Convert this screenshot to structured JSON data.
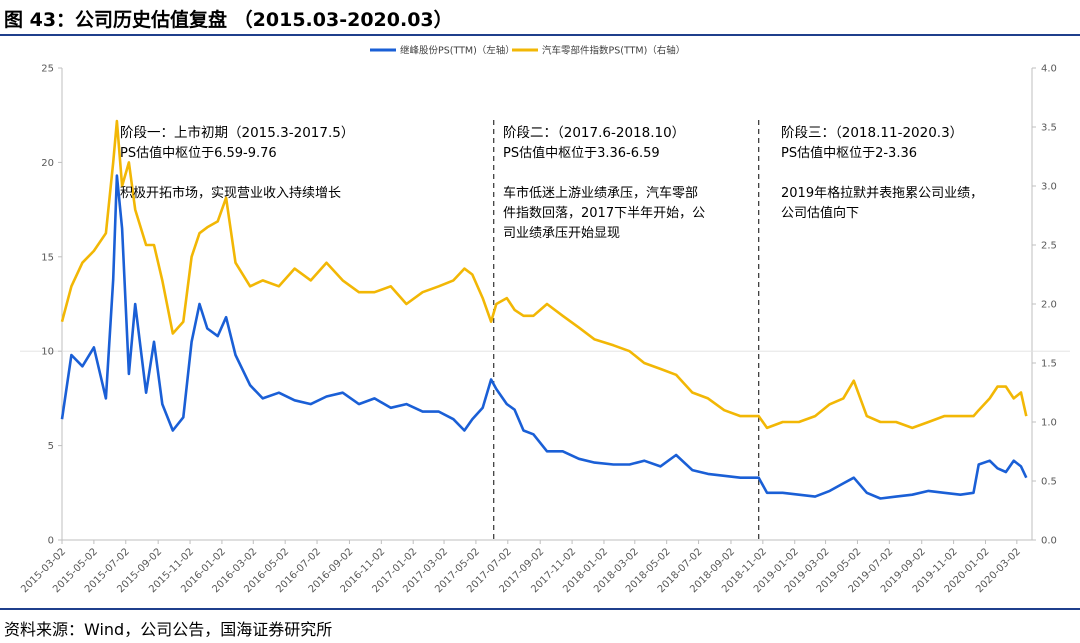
{
  "title": "图 43：公司历史估值复盘 （2015.03-2020.03）",
  "source": "资料来源：Wind，公司公告，国海证券研究所",
  "colors": {
    "company": "#1a5fd6",
    "industry": "#f2b705",
    "axis": "#bfbfbf",
    "frame": "#1f3f8c"
  },
  "chart_data": {
    "type": "line",
    "grid": false,
    "legend_position": "top-center",
    "y_left": {
      "lim": [
        0,
        25
      ],
      "ticks": [
        "0",
        "5",
        "10",
        "15",
        "20",
        "25"
      ]
    },
    "y_right": {
      "lim": [
        0,
        4
      ],
      "ticks": [
        "0.0",
        "0.5",
        "1.0",
        "1.5",
        "2.0",
        "2.5",
        "3.0",
        "3.5",
        "4.0"
      ]
    },
    "x_ticks": [
      "2015-03-02",
      "2015-05-02",
      "2015-07-02",
      "2015-09-02",
      "2015-11-02",
      "2016-01-02",
      "2016-03-02",
      "2016-05-02",
      "2016-07-02",
      "2016-09-02",
      "2016-11-02",
      "2017-01-02",
      "2017-03-02",
      "2017-05-02",
      "2017-07-02",
      "2017-09-02",
      "2017-11-02",
      "2018-01-02",
      "2018-03-02",
      "2018-05-02",
      "2018-07-02",
      "2018-09-02",
      "2018-11-02",
      "2019-01-02",
      "2019-03-02",
      "2019-05-02",
      "2019-07-02",
      "2019-09-02",
      "2019-11-02",
      "2020-01-02",
      "2020-03-02"
    ],
    "series": [
      {
        "name": "继峰股份PS(TTM)（左轴）",
        "axis": "left",
        "x": [
          "2015-03-02",
          "2015-03-20",
          "2015-04-10",
          "2015-05-02",
          "2015-05-25",
          "2015-06-08",
          "2015-06-15",
          "2015-06-25",
          "2015-07-08",
          "2015-07-20",
          "2015-08-10",
          "2015-08-25",
          "2015-09-10",
          "2015-09-30",
          "2015-10-20",
          "2015-11-05",
          "2015-11-20",
          "2015-12-05",
          "2015-12-25",
          "2016-01-10",
          "2016-01-28",
          "2016-02-25",
          "2016-03-20",
          "2016-04-20",
          "2016-05-20",
          "2016-06-20",
          "2016-07-20",
          "2016-08-20",
          "2016-09-20",
          "2016-10-20",
          "2016-11-20",
          "2016-12-20",
          "2017-01-20",
          "2017-02-20",
          "2017-03-20",
          "2017-04-10",
          "2017-04-25",
          "2017-05-15",
          "2017-05-31",
          "2017-06-10",
          "2017-06-30",
          "2017-07-15",
          "2017-08-01",
          "2017-08-20",
          "2017-09-15",
          "2017-10-15",
          "2017-11-15",
          "2017-12-15",
          "2018-01-20",
          "2018-02-20",
          "2018-03-20",
          "2018-04-20",
          "2018-05-20",
          "2018-06-20",
          "2018-07-20",
          "2018-08-20",
          "2018-09-20",
          "2018-10-25",
          "2018-11-10",
          "2018-12-10",
          "2019-01-10",
          "2019-02-10",
          "2019-03-10",
          "2019-04-05",
          "2019-04-25",
          "2019-05-20",
          "2019-06-15",
          "2019-07-15",
          "2019-08-15",
          "2019-09-15",
          "2019-10-15",
          "2019-11-15",
          "2019-12-10",
          "2019-12-20",
          "2020-01-10",
          "2020-01-25",
          "2020-02-10",
          "2020-02-25",
          "2020-03-10",
          "2020-03-20"
        ],
        "values": [
          6.4,
          9.8,
          9.2,
          10.2,
          7.5,
          13.8,
          19.3,
          16.5,
          8.8,
          12.5,
          7.8,
          10.5,
          7.2,
          5.8,
          6.5,
          10.5,
          12.5,
          11.2,
          10.8,
          11.8,
          9.8,
          8.2,
          7.5,
          7.8,
          7.4,
          7.2,
          7.6,
          7.8,
          7.2,
          7.5,
          7.0,
          7.2,
          6.8,
          6.8,
          6.4,
          5.8,
          6.4,
          7.0,
          8.5,
          8.0,
          7.2,
          6.9,
          5.8,
          5.6,
          4.7,
          4.7,
          4.3,
          4.1,
          4.0,
          4.0,
          4.2,
          3.9,
          4.5,
          3.7,
          3.5,
          3.4,
          3.3,
          3.3,
          2.5,
          2.5,
          2.4,
          2.3,
          2.6,
          3.0,
          3.3,
          2.5,
          2.2,
          2.3,
          2.4,
          2.6,
          2.5,
          2.4,
          2.5,
          4.0,
          4.2,
          3.8,
          3.6,
          4.2,
          3.9,
          3.3
        ]
      },
      {
        "name": "汽车零部件指数PS(TTM)（右轴）",
        "axis": "right",
        "x": [
          "2015-03-02",
          "2015-03-20",
          "2015-04-10",
          "2015-05-02",
          "2015-05-25",
          "2015-06-08",
          "2015-06-15",
          "2015-06-25",
          "2015-07-08",
          "2015-07-20",
          "2015-08-10",
          "2015-08-25",
          "2015-09-10",
          "2015-09-30",
          "2015-10-20",
          "2015-11-05",
          "2015-11-20",
          "2015-12-05",
          "2015-12-25",
          "2016-01-10",
          "2016-01-28",
          "2016-02-25",
          "2016-03-20",
          "2016-04-20",
          "2016-05-20",
          "2016-06-20",
          "2016-07-20",
          "2016-08-20",
          "2016-09-20",
          "2016-10-20",
          "2016-11-20",
          "2016-12-20",
          "2017-01-20",
          "2017-02-20",
          "2017-03-20",
          "2017-04-10",
          "2017-04-25",
          "2017-05-15",
          "2017-05-31",
          "2017-06-10",
          "2017-06-30",
          "2017-07-15",
          "2017-08-01",
          "2017-08-20",
          "2017-09-15",
          "2017-10-15",
          "2017-11-15",
          "2017-12-15",
          "2018-01-20",
          "2018-02-20",
          "2018-03-20",
          "2018-04-20",
          "2018-05-20",
          "2018-06-20",
          "2018-07-20",
          "2018-08-20",
          "2018-09-20",
          "2018-10-25",
          "2018-11-10",
          "2018-12-10",
          "2019-01-10",
          "2019-02-10",
          "2019-03-10",
          "2019-04-05",
          "2019-04-25",
          "2019-05-20",
          "2019-06-15",
          "2019-07-15",
          "2019-08-15",
          "2019-09-15",
          "2019-10-15",
          "2019-11-15",
          "2019-12-10",
          "2019-12-20",
          "2020-01-10",
          "2020-01-25",
          "2020-02-10",
          "2020-02-25",
          "2020-03-10",
          "2020-03-20"
        ],
        "values": [
          1.85,
          2.15,
          2.35,
          2.45,
          2.6,
          3.2,
          3.55,
          3.0,
          3.2,
          2.8,
          2.5,
          2.5,
          2.2,
          1.75,
          1.85,
          2.4,
          2.6,
          2.65,
          2.7,
          2.9,
          2.35,
          2.15,
          2.2,
          2.15,
          2.3,
          2.2,
          2.35,
          2.2,
          2.1,
          2.1,
          2.15,
          2.0,
          2.1,
          2.15,
          2.2,
          2.3,
          2.25,
          2.05,
          1.85,
          2.0,
          2.05,
          1.95,
          1.9,
          1.9,
          2.0,
          1.9,
          1.8,
          1.7,
          1.65,
          1.6,
          1.5,
          1.45,
          1.4,
          1.25,
          1.2,
          1.1,
          1.05,
          1.05,
          0.95,
          1.0,
          1.0,
          1.05,
          1.15,
          1.2,
          1.35,
          1.05,
          1.0,
          1.0,
          0.95,
          1.0,
          1.05,
          1.05,
          1.05,
          1.1,
          1.2,
          1.3,
          1.3,
          1.2,
          1.25,
          1.05
        ]
      }
    ],
    "dividers": [
      "2017-06-05",
      "2018-10-25"
    ],
    "annotations": [
      {
        "heading": "阶段一：上市初期（2015.3-2017.5）",
        "lines": [
          "PS估值中枢位于6.59-9.76",
          "",
          "积极开拓市场，实现营业收入持续增长"
        ]
      },
      {
        "heading": "阶段二：（2017.6-2018.10）",
        "lines": [
          "PS估值中枢位于3.36-6.59",
          "",
          "车市低迷上游业绩承压，汽车零部",
          "件指数回落，2017下半年开始，公",
          "司业绩承压开始显现"
        ]
      },
      {
        "heading": "阶段三：（2018.11-2020.3）",
        "lines": [
          "PS估值中枢位于2-3.36",
          "",
          "2019年格拉默并表拖累公司业绩，",
          "公司估值向下"
        ]
      }
    ]
  }
}
